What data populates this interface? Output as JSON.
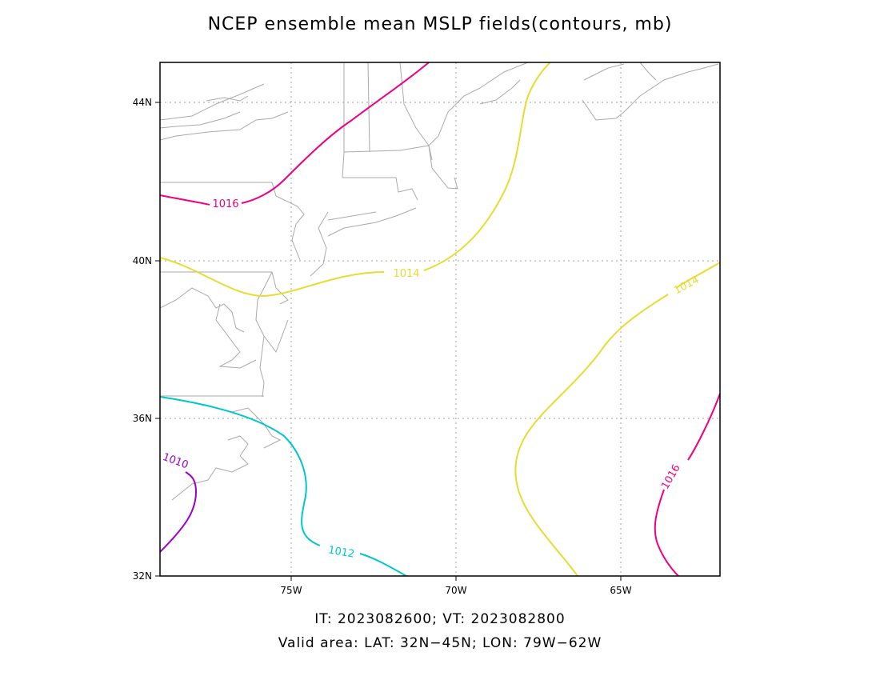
{
  "title": "NCEP ensemble mean MSLP fields(contours, mb)",
  "footer": {
    "line1": "IT: 2023082600; VT: 2023082800",
    "line2": "Valid area: LAT: 32N−45N; LON: 79W−62W"
  },
  "axes": {
    "lat_labels": [
      "32N",
      "36N",
      "40N",
      "44N"
    ],
    "lon_labels": [
      "75W",
      "70W",
      "65W"
    ],
    "lat_range": [
      32,
      45
    ],
    "lon_range": [
      -79,
      -62
    ],
    "grid": true
  },
  "colors": {
    "c1010": "#9a00c8",
    "c1012": "#00c8c8",
    "c1014": "#e6dc32",
    "c1016": "#f0007f",
    "coast": "#a9a9a9",
    "grid": "#a0a0a0"
  },
  "contours": [
    {
      "label": "1010",
      "color_key": "c1010"
    },
    {
      "label": "1012",
      "color_key": "c1012"
    },
    {
      "label": "1014",
      "color_key": "c1014"
    },
    {
      "label": "1016",
      "color_key": "c1016"
    }
  ]
}
